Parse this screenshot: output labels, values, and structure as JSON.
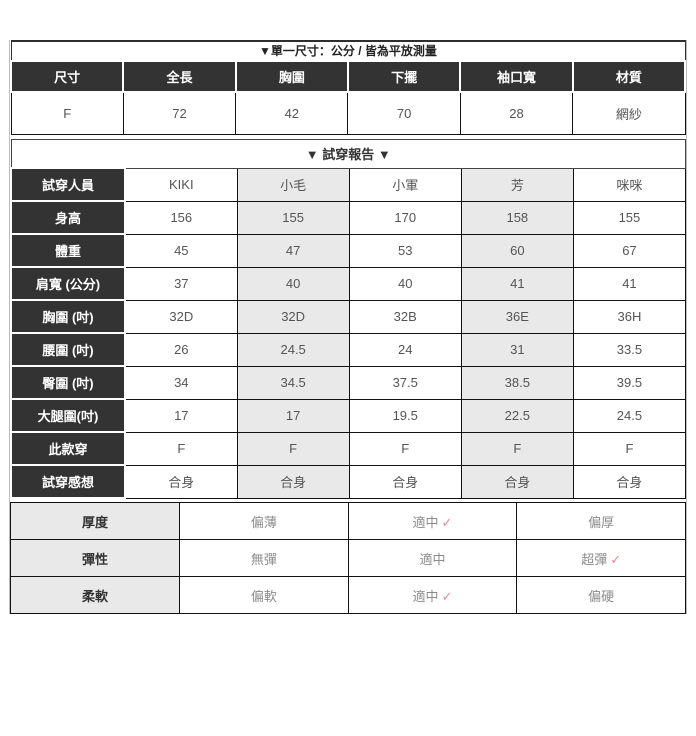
{
  "top_note": "▼單一尺寸：公分 / 皆為平放測量",
  "size_table": {
    "headers": [
      "尺寸",
      "全長",
      "胸圍",
      "下擺",
      "袖口寬",
      "材質"
    ],
    "values": [
      "F",
      "72",
      "42",
      "70",
      "28",
      "網紗"
    ]
  },
  "report_title": "▼ 試穿報告 ▼",
  "fit_table": {
    "rows": [
      {
        "label": "試穿人員",
        "values": [
          "KIKI",
          "小毛",
          "小軍",
          "芳",
          "咪咪"
        ]
      },
      {
        "label": "身高",
        "values": [
          "156",
          "155",
          "170",
          "158",
          "155"
        ]
      },
      {
        "label": "體重",
        "values": [
          "45",
          "47",
          "53",
          "60",
          "67"
        ]
      },
      {
        "label": "肩寬 (公分)",
        "values": [
          "37",
          "40",
          "40",
          "41",
          "41"
        ]
      },
      {
        "label": "胸圍 (吋)",
        "values": [
          "32D",
          "32D",
          "32B",
          "36E",
          "36H"
        ]
      },
      {
        "label": "腰圍 (吋)",
        "values": [
          "26",
          "24.5",
          "24",
          "31",
          "33.5"
        ]
      },
      {
        "label": "臀圍 (吋)",
        "values": [
          "34",
          "34.5",
          "37.5",
          "38.5",
          "39.5"
        ]
      },
      {
        "label": "大腿圍(吋)",
        "values": [
          "17",
          "17",
          "19.5",
          "22.5",
          "24.5"
        ]
      },
      {
        "label": "此款穿",
        "values": [
          "F",
          "F",
          "F",
          "F",
          "F"
        ]
      },
      {
        "label": "試穿感想",
        "values": [
          "合身",
          "合身",
          "合身",
          "合身",
          "合身"
        ]
      }
    ]
  },
  "property_table": {
    "rows": [
      {
        "label": "厚度",
        "options": [
          {
            "text": "偏薄",
            "checked": false
          },
          {
            "text": "適中",
            "checked": true
          },
          {
            "text": "偏厚",
            "checked": false
          }
        ]
      },
      {
        "label": "彈性",
        "options": [
          {
            "text": "無彈",
            "checked": false
          },
          {
            "text": "適中",
            "checked": false
          },
          {
            "text": "超彈",
            "checked": true
          }
        ]
      },
      {
        "label": "柔軟",
        "options": [
          {
            "text": "偏軟",
            "checked": false
          },
          {
            "text": "適中",
            "checked": true
          },
          {
            "text": "偏硬",
            "checked": false
          }
        ]
      }
    ]
  },
  "icons": {
    "check": "✓"
  },
  "colors": {
    "header_bg": "#333333",
    "alt_column_bg": "#e9e9e9",
    "label_bg": "#e9e9e9",
    "muted_text": "#8b8b8b",
    "check": "#f08595"
  }
}
